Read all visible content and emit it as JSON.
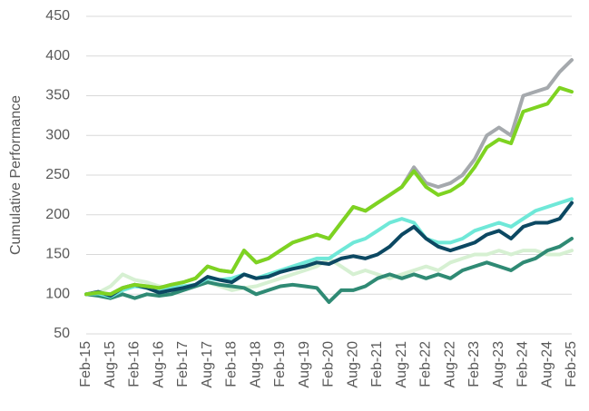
{
  "chart_data": {
    "type": "line",
    "y_label": "Cumulative Performance",
    "categories": [
      "Feb-15",
      null,
      "Aug-15",
      null,
      "Feb-16",
      null,
      "Aug-16",
      null,
      "Feb-17",
      null,
      "Aug-17",
      null,
      "Feb-18",
      null,
      "Aug-18",
      null,
      "Feb-19",
      null,
      "Aug-19",
      null,
      "Feb-20",
      null,
      "Aug-20",
      null,
      "Feb-21",
      null,
      "Aug-21",
      null,
      "Feb-22",
      null,
      "Aug-22",
      null,
      "Feb-23",
      null,
      "Aug-23",
      null,
      "Feb-24",
      null,
      "Aug-24",
      null,
      "Feb-25"
    ],
    "ylim": [
      50,
      450
    ],
    "yticks": [
      50,
      100,
      150,
      200,
      250,
      300,
      350,
      400,
      450
    ],
    "grid": true,
    "series": [
      {
        "color": "#d6f0d2",
        "values": [
          100,
          102,
          110,
          125,
          118,
          115,
          110,
          108,
          108,
          112,
          115,
          110,
          105,
          108,
          110,
          115,
          120,
          125,
          130,
          135,
          145,
          135,
          125,
          130,
          125,
          120,
          125,
          130,
          135,
          130,
          140,
          145,
          150,
          150,
          155,
          150,
          155,
          155,
          150,
          150,
          155
        ]
      },
      {
        "color": "#2f8a74",
        "values": [
          100,
          98,
          95,
          100,
          95,
          100,
          98,
          100,
          105,
          110,
          115,
          112,
          110,
          108,
          100,
          105,
          110,
          112,
          110,
          108,
          90,
          105,
          105,
          110,
          120,
          125,
          120,
          125,
          120,
          125,
          120,
          130,
          135,
          140,
          135,
          130,
          140,
          145,
          155,
          160,
          170
        ]
      },
      {
        "color": "#6fe8d8",
        "values": [
          100,
          101,
          97,
          105,
          110,
          108,
          105,
          108,
          110,
          112,
          120,
          118,
          120,
          125,
          120,
          125,
          130,
          135,
          140,
          145,
          145,
          155,
          165,
          170,
          180,
          190,
          195,
          190,
          170,
          165,
          165,
          170,
          180,
          185,
          190,
          185,
          195,
          205,
          210,
          215,
          220
        ]
      },
      {
        "color": "#0c4862",
        "values": [
          100,
          103,
          98,
          108,
          112,
          108,
          102,
          105,
          108,
          112,
          122,
          118,
          115,
          125,
          120,
          122,
          128,
          132,
          135,
          140,
          138,
          145,
          148,
          145,
          150,
          160,
          175,
          185,
          170,
          160,
          155,
          160,
          165,
          175,
          180,
          170,
          185,
          190,
          190,
          195,
          215
        ]
      },
      {
        "color": "#a5a9ad",
        "values": [
          100,
          102,
          100,
          108,
          112,
          110,
          108,
          112,
          115,
          120,
          135,
          130,
          128,
          155,
          140,
          145,
          155,
          165,
          170,
          175,
          170,
          190,
          210,
          205,
          215,
          225,
          235,
          260,
          240,
          235,
          240,
          250,
          270,
          300,
          310,
          300,
          350,
          355,
          360,
          380,
          395
        ]
      },
      {
        "color": "#7ed321",
        "values": [
          100,
          102,
          100,
          108,
          112,
          110,
          108,
          112,
          115,
          120,
          135,
          130,
          128,
          155,
          140,
          145,
          155,
          165,
          170,
          175,
          170,
          190,
          210,
          205,
          215,
          225,
          235,
          255,
          235,
          225,
          230,
          240,
          260,
          285,
          295,
          290,
          330,
          335,
          340,
          360,
          355
        ]
      }
    ]
  }
}
